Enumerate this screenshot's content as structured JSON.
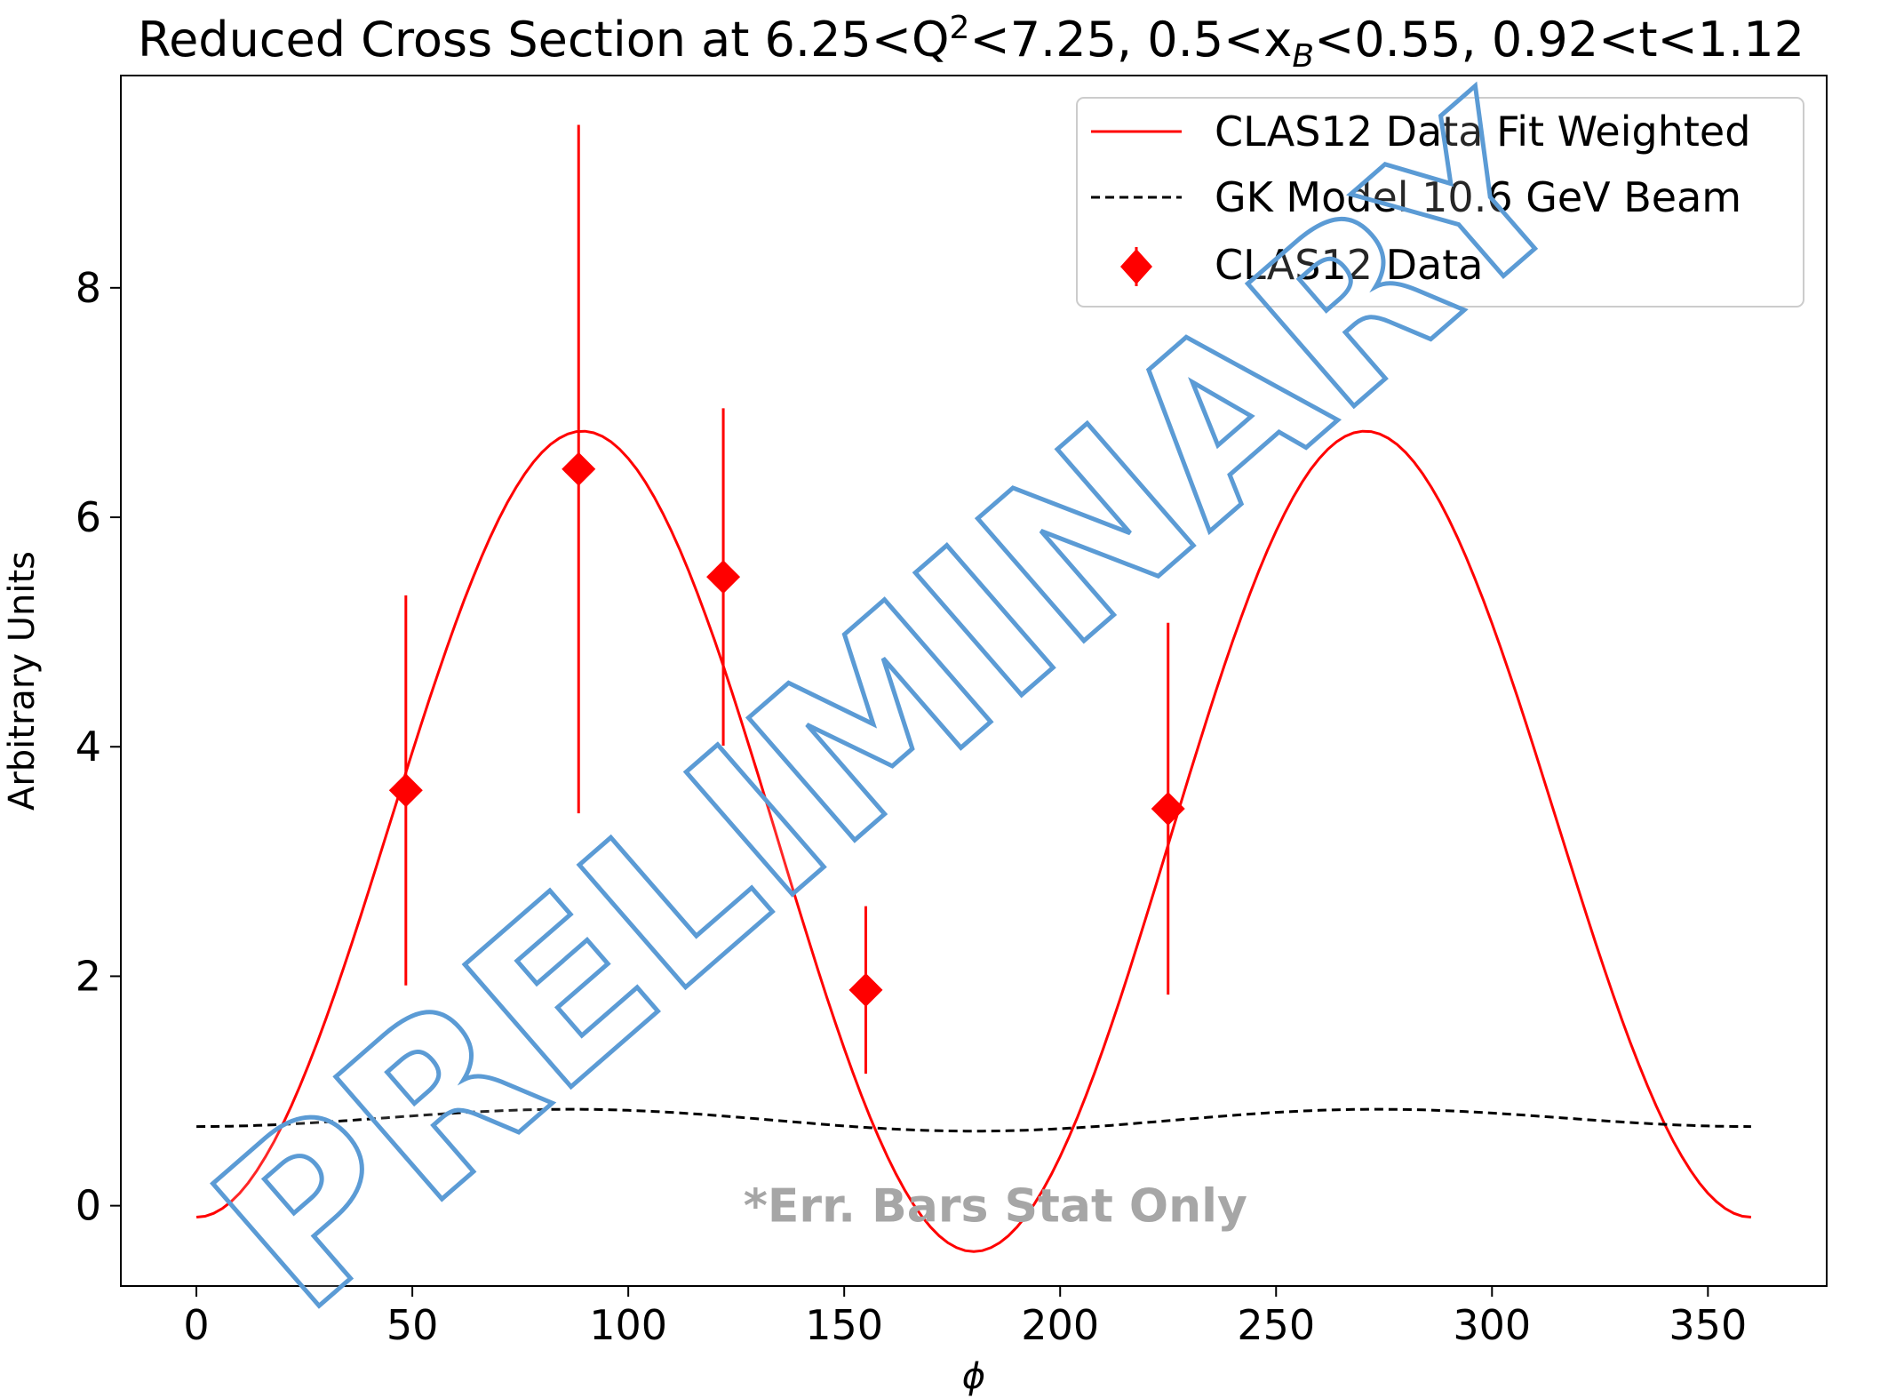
{
  "chart_data": {
    "type": "scatter",
    "title": {
      "prefix": "Reduced Cross Section at 6.25<Q",
      "sup": "2",
      "mid": "<7.25, 0.5<x",
      "sub": "B",
      "suffix": "<0.55, 0.92<t<1.12"
    },
    "xlabel": "ϕ",
    "ylabel": "Arbitrary Units",
    "xlim": [
      -17.5,
      377.5
    ],
    "ylim": [
      -0.7,
      9.85
    ],
    "xticks": [
      0,
      50,
      100,
      150,
      200,
      250,
      300,
      350
    ],
    "yticks": [
      0,
      2,
      4,
      6,
      8
    ],
    "grid": false,
    "legend_position": "top-right",
    "series": [
      {
        "name": "CLAS12 Data Fit Weighted",
        "kind": "line",
        "style": "solid",
        "color": "#ff0000",
        "model": {
          "A": 3.25,
          "B": -3.5,
          "C": 0.15
        },
        "model_note": "y = A + B*cos(2phi) + C*cos(phi)"
      },
      {
        "name": "GK Model 10.6 GeV Beam",
        "kind": "line",
        "style": "dashed",
        "color": "#000000",
        "model": {
          "A": 0.755,
          "B": -0.085,
          "C": 0.02
        }
      },
      {
        "name": "CLAS12 Data",
        "kind": "errorbar",
        "marker": "diamond",
        "color": "#ff0000",
        "points": [
          {
            "x": 48.5,
            "y": 3.62,
            "err": 1.7
          },
          {
            "x": 88.5,
            "y": 6.42,
            "err": 3.0
          },
          {
            "x": 122,
            "y": 5.48,
            "err": 1.47
          },
          {
            "x": 155,
            "y": 1.88,
            "err": 0.73
          },
          {
            "x": 225,
            "y": 3.46,
            "err": 1.62
          }
        ]
      }
    ],
    "annotations": [
      {
        "text": "*Err. Bars Stat Only",
        "x": 185,
        "y": 0.0,
        "color": "#a6a6a6"
      }
    ]
  },
  "watermark": "PRELIMINARY"
}
